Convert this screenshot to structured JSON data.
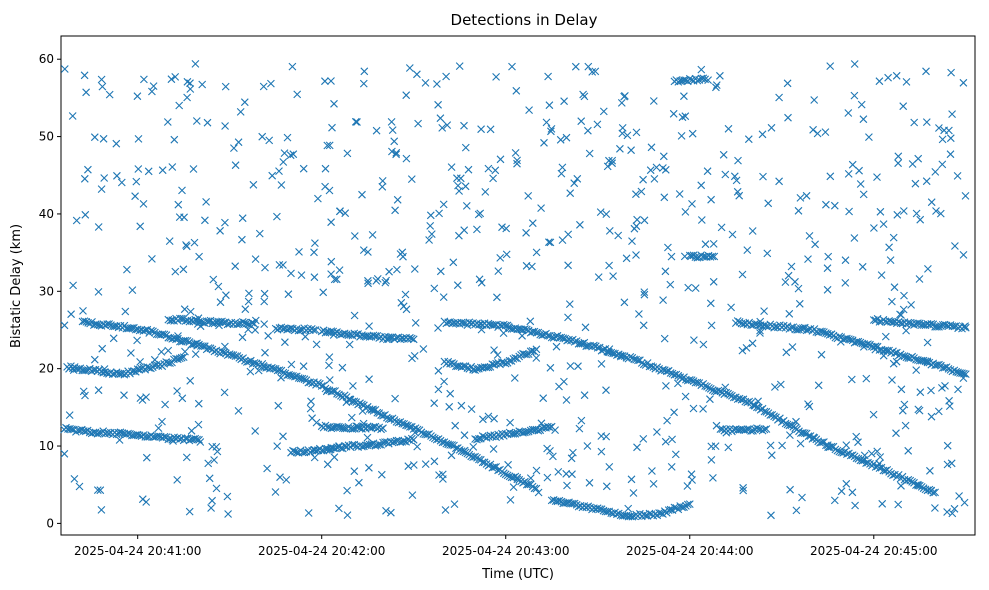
{
  "chart_data": {
    "type": "scatter",
    "title": "Detections in Delay",
    "xlabel": "Time (UTC)",
    "ylabel": "Bistatic Delay (km)",
    "x_ticks": [
      "2025-04-24 20:41:00",
      "2025-04-24 20:42:00",
      "2025-04-24 20:43:00",
      "2025-04-24 20:44:00",
      "2025-04-24 20:45:00"
    ],
    "y_ticks": [
      "0",
      "10",
      "20",
      "30",
      "40",
      "50",
      "60"
    ],
    "xlim": [
      "2025-04-24 20:40:35",
      "2025-04-24 20:45:33"
    ],
    "ylim": [
      -1.5,
      63
    ],
    "grid": false,
    "legend": "none",
    "marker": "x",
    "color": "#1f77b4",
    "tracks": [
      {
        "points": [
          [
            "20:40:36",
            12.2
          ],
          [
            "20:40:45",
            11.8
          ],
          [
            "20:41:00",
            11.5
          ],
          [
            "20:41:10",
            11.0
          ],
          [
            "20:41:20",
            10.8
          ]
        ]
      },
      {
        "points": [
          [
            "20:40:37",
            20.2
          ],
          [
            "20:40:45",
            19.8
          ],
          [
            "20:40:55",
            19.3
          ],
          [
            "20:41:00",
            19.8
          ],
          [
            "20:41:08",
            20.5
          ],
          [
            "20:41:15",
            21.5
          ]
        ]
      },
      {
        "points": [
          [
            "20:40:42",
            26.0
          ],
          [
            "20:41:00",
            25.2
          ],
          [
            "20:41:20",
            23.0
          ],
          [
            "20:41:40",
            20.5
          ],
          [
            "20:42:00",
            17.8
          ],
          [
            "20:42:20",
            14.0
          ],
          [
            "20:42:40",
            10.5
          ],
          [
            "20:43:00",
            6.5
          ],
          [
            "20:43:10",
            4.5
          ]
        ]
      },
      {
        "points": [
          [
            "20:41:10",
            26.4
          ],
          [
            "20:41:25",
            26.0
          ],
          [
            "20:41:38",
            25.8
          ]
        ]
      },
      {
        "points": [
          [
            "20:41:45",
            25.2
          ],
          [
            "20:41:58",
            25.0
          ]
        ]
      },
      {
        "points": [
          [
            "20:41:50",
            9.2
          ],
          [
            "20:42:00",
            9.5
          ],
          [
            "20:42:10",
            10.0
          ],
          [
            "20:42:20",
            10.3
          ],
          [
            "20:42:30",
            10.8
          ]
        ]
      },
      {
        "points": [
          [
            "20:42:00",
            12.5
          ],
          [
            "20:42:10",
            12.4
          ],
          [
            "20:42:20",
            12.3
          ]
        ]
      },
      {
        "points": [
          [
            "20:42:00",
            24.8
          ],
          [
            "20:42:20",
            24.0
          ],
          [
            "20:42:30",
            23.8
          ]
        ]
      },
      {
        "points": [
          [
            "20:42:40",
            20.8
          ],
          [
            "20:42:50",
            20.0
          ],
          [
            "20:43:00",
            20.8
          ],
          [
            "20:43:10",
            22.5
          ]
        ]
      },
      {
        "points": [
          [
            "20:42:40",
            26.0
          ],
          [
            "20:43:00",
            25.5
          ],
          [
            "20:43:20",
            23.8
          ],
          [
            "20:43:40",
            21.5
          ],
          [
            "20:44:00",
            18.5
          ],
          [
            "20:44:20",
            15.5
          ],
          [
            "20:44:40",
            11.0
          ],
          [
            "20:45:00",
            7.5
          ],
          [
            "20:45:20",
            4.0
          ]
        ]
      },
      {
        "points": [
          [
            "20:42:50",
            11.0
          ],
          [
            "20:43:00",
            11.5
          ],
          [
            "20:43:10",
            12.0
          ],
          [
            "20:43:15",
            12.5
          ]
        ]
      },
      {
        "points": [
          [
            "20:43:15",
            3.0
          ],
          [
            "20:43:30",
            1.8
          ],
          [
            "20:43:40",
            1.0
          ],
          [
            "20:43:50",
            1.2
          ],
          [
            "20:44:00",
            2.5
          ]
        ]
      },
      {
        "points": [
          [
            "20:43:55",
            57.2
          ],
          [
            "20:44:05",
            57.4
          ]
        ]
      },
      {
        "points": [
          [
            "20:44:00",
            34.5
          ],
          [
            "20:44:08",
            34.5
          ]
        ]
      },
      {
        "points": [
          [
            "20:44:10",
            12.0
          ],
          [
            "20:44:25",
            12.2
          ]
        ]
      },
      {
        "points": [
          [
            "20:44:15",
            26.0
          ],
          [
            "20:44:40",
            25.0
          ],
          [
            "20:45:00",
            22.8
          ],
          [
            "20:45:20",
            20.5
          ],
          [
            "20:45:30",
            19.3
          ]
        ]
      },
      {
        "points": [
          [
            "20:45:00",
            26.3
          ],
          [
            "20:45:20",
            25.6
          ],
          [
            "20:45:30",
            25.3
          ]
        ]
      }
    ]
  }
}
